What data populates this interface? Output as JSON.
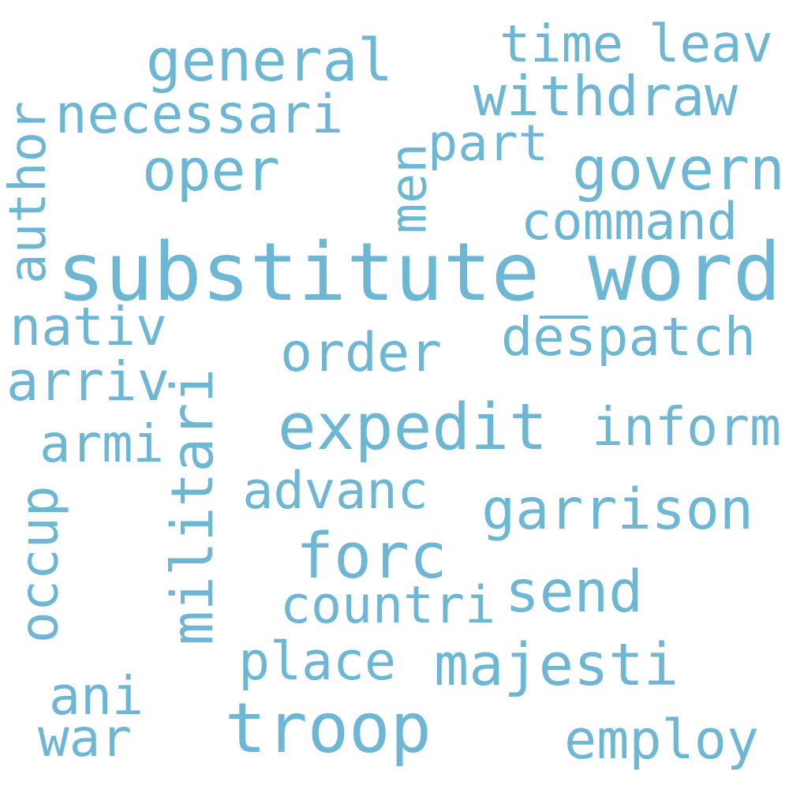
{
  "word_color": "#6db7d4",
  "background_color": "#ffffff",
  "words": [
    {
      "text": "substitute_word",
      "orientation": "horizontal"
    },
    {
      "text": "expedit",
      "orientation": "horizontal"
    },
    {
      "text": "troop",
      "orientation": "horizontal"
    },
    {
      "text": "forc",
      "orientation": "horizontal"
    },
    {
      "text": "militari",
      "orientation": "vertical"
    },
    {
      "text": "general",
      "orientation": "horizontal"
    },
    {
      "text": "govern",
      "orientation": "horizontal"
    },
    {
      "text": "garrison",
      "orientation": "horizontal"
    },
    {
      "text": "majesti",
      "orientation": "horizontal"
    },
    {
      "text": "send",
      "orientation": "horizontal"
    },
    {
      "text": "withdraw",
      "orientation": "horizontal"
    },
    {
      "text": "oper",
      "orientation": "horizontal"
    },
    {
      "text": "despatch",
      "orientation": "horizontal"
    },
    {
      "text": "inform",
      "orientation": "horizontal"
    },
    {
      "text": "employ",
      "orientation": "horizontal"
    },
    {
      "text": "order",
      "orientation": "horizontal"
    },
    {
      "text": "necessari",
      "orientation": "horizontal"
    },
    {
      "text": "command",
      "orientation": "horizontal"
    },
    {
      "text": "time",
      "orientation": "horizontal"
    },
    {
      "text": "leav",
      "orientation": "horizontal"
    },
    {
      "text": "part",
      "orientation": "horizontal"
    },
    {
      "text": "place",
      "orientation": "horizontal"
    },
    {
      "text": "countri",
      "orientation": "horizontal"
    },
    {
      "text": "advanc",
      "orientation": "horizontal"
    },
    {
      "text": "nativ",
      "orientation": "horizontal"
    },
    {
      "text": "arriv",
      "orientation": "horizontal"
    },
    {
      "text": "armi",
      "orientation": "horizontal"
    },
    {
      "text": "ani",
      "orientation": "horizontal"
    },
    {
      "text": "war",
      "orientation": "horizontal"
    },
    {
      "text": "author",
      "orientation": "vertical"
    },
    {
      "text": "occup",
      "orientation": "vertical"
    },
    {
      "text": "men",
      "orientation": "vertical"
    }
  ]
}
